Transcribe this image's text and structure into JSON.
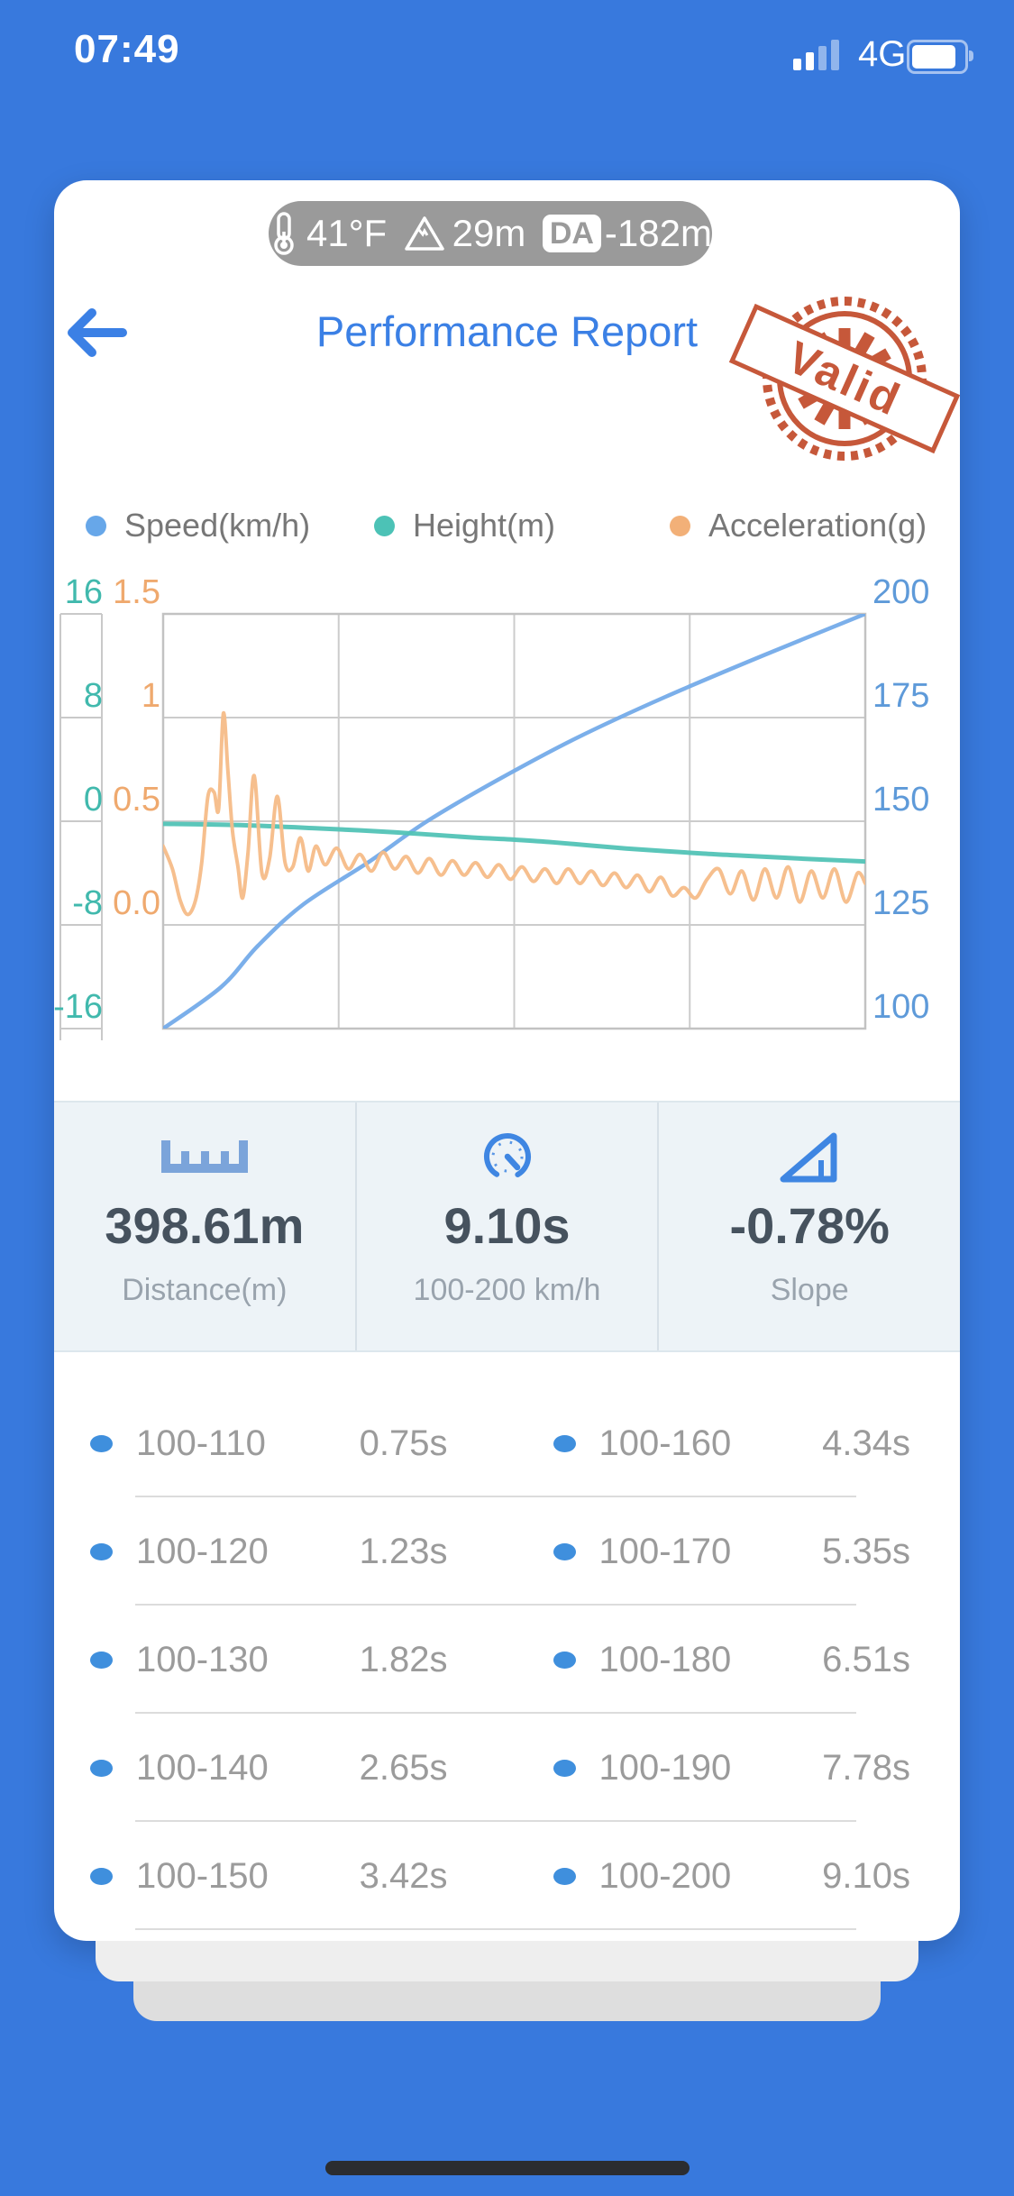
{
  "status_bar": {
    "time": "07:49",
    "network": "4G"
  },
  "env_pill": {
    "temperature": "41°F",
    "altitude": "29m",
    "da_label": "DA",
    "density_altitude": "-182m"
  },
  "header": {
    "title": "Performance Report",
    "stamp_text": "Valid"
  },
  "legend": [
    {
      "label": "Speed(km/h)",
      "color": "#67a7e9"
    },
    {
      "label": "Height(m)",
      "color": "#4cc2b6"
    },
    {
      "label": "Acceleration(g)",
      "color": "#f2b078"
    }
  ],
  "chart_data": {
    "type": "line",
    "title": "",
    "x_range": [
      0,
      9.1
    ],
    "grid": true,
    "axes": {
      "height": {
        "label": "Height(m)",
        "color": "#41b9ad",
        "range": [
          -16,
          16
        ],
        "ticks": [
          "16",
          "8",
          "0",
          "-8",
          "-16"
        ]
      },
      "acceleration": {
        "label": "Acceleration(g)",
        "color": "#efa96e",
        "range": [
          -0.5,
          1.5
        ],
        "ticks": [
          "1.5",
          "1",
          "0.5",
          "0.0"
        ]
      },
      "speed": {
        "label": "Speed(km/h)",
        "color": "#5e9ad9",
        "range": [
          100,
          200
        ],
        "ticks": [
          "200",
          "175",
          "150",
          "125",
          "100"
        ]
      }
    },
    "series": [
      {
        "name": "speed_kmh",
        "axis": "speed",
        "color": "#74abe9",
        "width": 4.5,
        "points": [
          [
            0,
            100
          ],
          [
            0.75,
            110
          ],
          [
            1.23,
            120
          ],
          [
            1.82,
            130
          ],
          [
            2.65,
            140
          ],
          [
            3.42,
            150
          ],
          [
            4.34,
            160
          ],
          [
            5.35,
            170
          ],
          [
            6.51,
            180
          ],
          [
            7.78,
            190
          ],
          [
            9.1,
            200
          ]
        ]
      },
      {
        "name": "height_m",
        "axis": "height",
        "color": "#52c3b6",
        "width": 5,
        "points": [
          [
            0,
            -0.2
          ],
          [
            1,
            -0.3
          ],
          [
            2,
            -0.55
          ],
          [
            3,
            -0.85
          ],
          [
            4,
            -1.25
          ],
          [
            4.5,
            -1.4
          ],
          [
            5,
            -1.6
          ],
          [
            5.5,
            -1.85
          ],
          [
            6,
            -2.1
          ],
          [
            6.5,
            -2.3
          ],
          [
            7,
            -2.5
          ],
          [
            7.5,
            -2.65
          ],
          [
            8,
            -2.8
          ],
          [
            8.5,
            -2.95
          ],
          [
            9.1,
            -3.1
          ]
        ]
      },
      {
        "name": "acceleration_g",
        "axis": "acceleration",
        "color": "#f5bc88",
        "width": 4,
        "points": [
          [
            0,
            0.38
          ],
          [
            0.12,
            0.27
          ],
          [
            0.22,
            0.12
          ],
          [
            0.32,
            0.05
          ],
          [
            0.42,
            0.12
          ],
          [
            0.5,
            0.3
          ],
          [
            0.58,
            0.62
          ],
          [
            0.66,
            0.64
          ],
          [
            0.72,
            0.56
          ],
          [
            0.78,
            1.02
          ],
          [
            0.84,
            0.74
          ],
          [
            0.9,
            0.45
          ],
          [
            0.97,
            0.28
          ],
          [
            1.03,
            0.13
          ],
          [
            1.1,
            0.35
          ],
          [
            1.18,
            0.72
          ],
          [
            1.28,
            0.25
          ],
          [
            1.38,
            0.32
          ],
          [
            1.48,
            0.62
          ],
          [
            1.58,
            0.3
          ],
          [
            1.68,
            0.28
          ],
          [
            1.78,
            0.42
          ],
          [
            1.88,
            0.26
          ],
          [
            1.98,
            0.38
          ],
          [
            2.1,
            0.29
          ],
          [
            2.25,
            0.37
          ],
          [
            2.4,
            0.27
          ],
          [
            2.55,
            0.34
          ],
          [
            2.7,
            0.26
          ],
          [
            2.85,
            0.35
          ],
          [
            3.0,
            0.27
          ],
          [
            3.15,
            0.33
          ],
          [
            3.3,
            0.25
          ],
          [
            3.45,
            0.32
          ],
          [
            3.6,
            0.24
          ],
          [
            3.75,
            0.31
          ],
          [
            3.9,
            0.24
          ],
          [
            4.05,
            0.3
          ],
          [
            4.2,
            0.23
          ],
          [
            4.35,
            0.29
          ],
          [
            4.5,
            0.22
          ],
          [
            4.65,
            0.28
          ],
          [
            4.8,
            0.21
          ],
          [
            4.95,
            0.27
          ],
          [
            5.1,
            0.2
          ],
          [
            5.25,
            0.27
          ],
          [
            5.4,
            0.2
          ],
          [
            5.55,
            0.26
          ],
          [
            5.7,
            0.19
          ],
          [
            5.85,
            0.25
          ],
          [
            6.0,
            0.18
          ],
          [
            6.15,
            0.24
          ],
          [
            6.3,
            0.16
          ],
          [
            6.45,
            0.23
          ],
          [
            6.6,
            0.14
          ],
          [
            6.75,
            0.18
          ],
          [
            6.9,
            0.13
          ],
          [
            7.05,
            0.22
          ],
          [
            7.2,
            0.27
          ],
          [
            7.35,
            0.15
          ],
          [
            7.5,
            0.26
          ],
          [
            7.65,
            0.12
          ],
          [
            7.8,
            0.27
          ],
          [
            7.95,
            0.13
          ],
          [
            8.1,
            0.28
          ],
          [
            8.25,
            0.11
          ],
          [
            8.4,
            0.26
          ],
          [
            8.55,
            0.13
          ],
          [
            8.7,
            0.27
          ],
          [
            8.85,
            0.11
          ],
          [
            9.0,
            0.25
          ],
          [
            9.1,
            0.2
          ]
        ]
      }
    ]
  },
  "stats": [
    {
      "icon": "ruler-icon",
      "value": "398.61m",
      "label": "Distance(m)"
    },
    {
      "icon": "speedometer-icon",
      "value": "9.10s",
      "label": "100-200 km/h"
    },
    {
      "icon": "slope-icon",
      "value": "-0.78%",
      "label": "Slope"
    }
  ],
  "table": {
    "rows": [
      {
        "left_label": "100-110",
        "left_value": "0.75s",
        "right_label": "100-160",
        "right_value": "4.34s"
      },
      {
        "left_label": "100-120",
        "left_value": "1.23s",
        "right_label": "100-170",
        "right_value": "5.35s"
      },
      {
        "left_label": "100-130",
        "left_value": "1.82s",
        "right_label": "100-180",
        "right_value": "6.51s"
      },
      {
        "left_label": "100-140",
        "left_value": "2.65s",
        "right_label": "100-190",
        "right_value": "7.78s"
      },
      {
        "left_label": "100-150",
        "left_value": "3.42s",
        "right_label": "100-200",
        "right_value": "9.10s"
      }
    ]
  },
  "colors": {
    "background": "#3879dd",
    "accent_blue": "#3b80e5",
    "stamp_red": "#c24c2c",
    "stats_bg": "#edf3f7",
    "gridline": "#cccccc"
  }
}
